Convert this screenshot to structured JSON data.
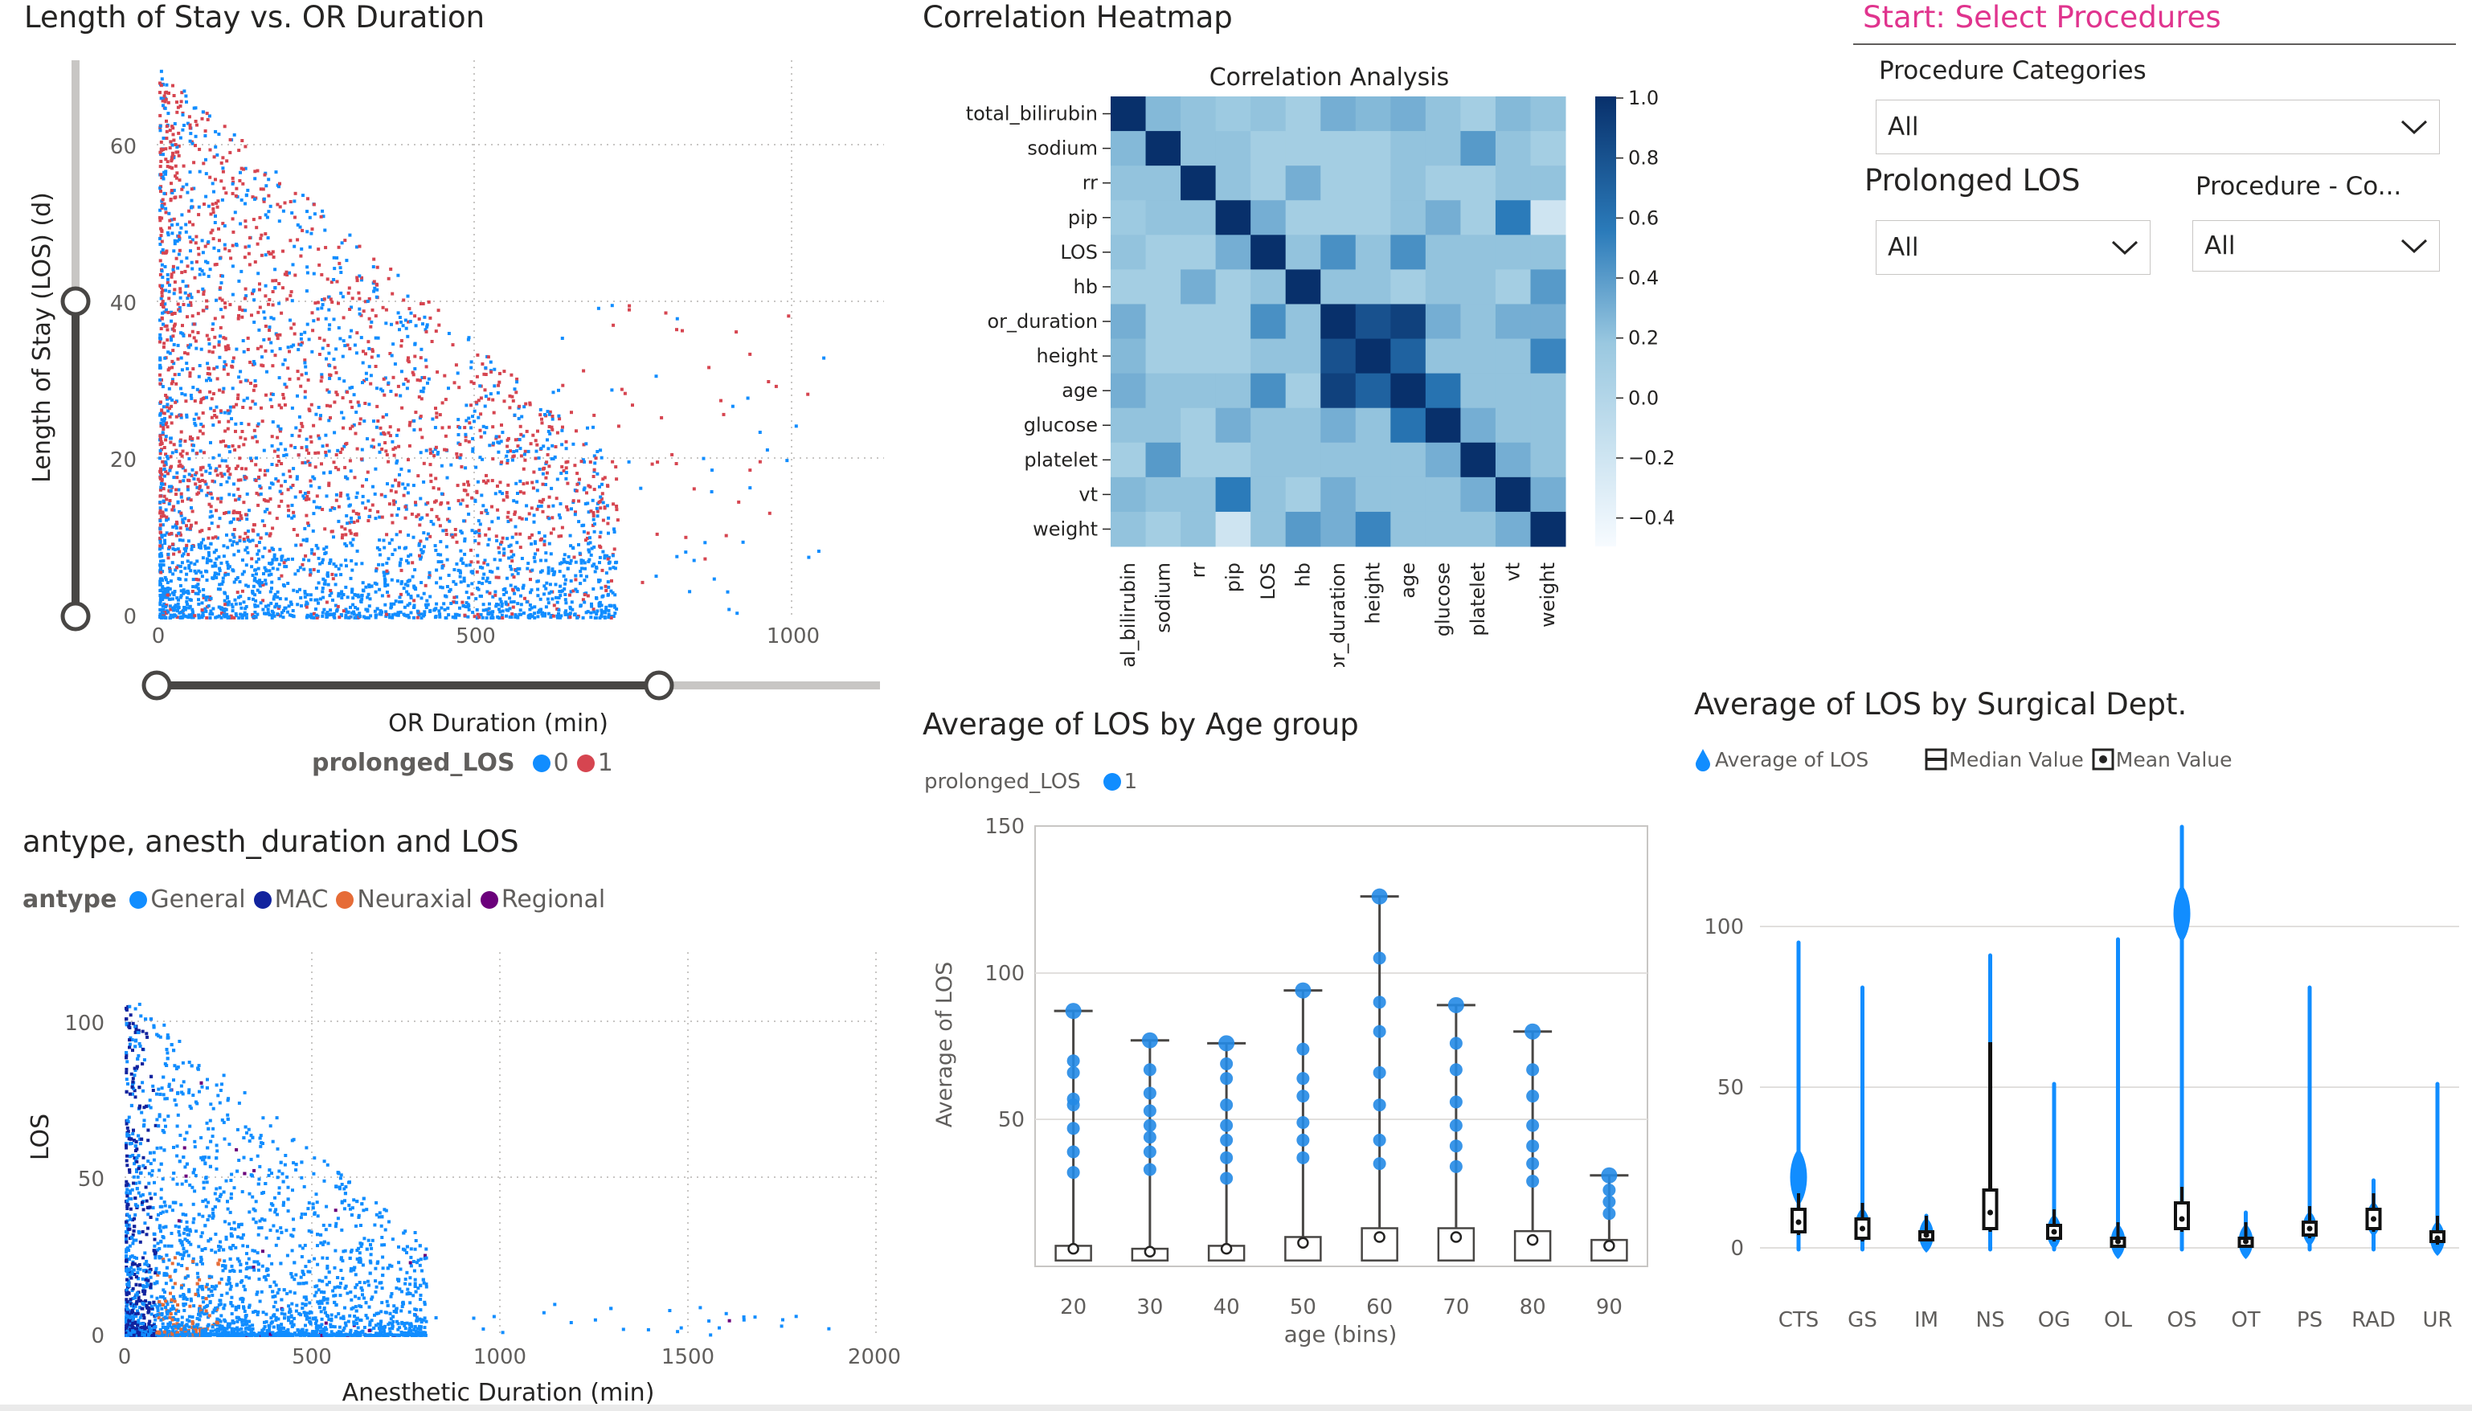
{
  "panels": {
    "scatter_los": {
      "title": "Length of Stay vs. OR Duration",
      "ylabel": "Length of Stay (LOS) (d)",
      "xlabel": "OR Duration (min)",
      "legend_title": "prolonged_LOS",
      "legend_items": [
        {
          "label": "0",
          "color": "#118dff"
        },
        {
          "label": "1",
          "color": "#d64550"
        }
      ],
      "y_ticks": [
        "0",
        "20",
        "40",
        "60"
      ],
      "x_ticks": [
        "0",
        "500",
        "1000"
      ]
    },
    "heatmap": {
      "title": "Correlation Heatmap",
      "inner_title": "Correlation Analysis",
      "variables": [
        "total_bilirubin",
        "sodium",
        "rr",
        "pip",
        "LOS",
        "hb",
        "or_duration",
        "height",
        "age",
        "glucose",
        "platelet",
        "vt",
        "weight"
      ],
      "colorbar_ticks": [
        "1.0",
        "0.8",
        "0.6",
        "0.4",
        "0.2",
        "0.0",
        "−0.2",
        "−0.4"
      ]
    },
    "slicers": {
      "header": "Start: Select Procedures",
      "procedure_categories": {
        "label": "Procedure Categories",
        "value": "All"
      },
      "prolonged_los": {
        "label": "Prolonged LOS",
        "value": "All"
      },
      "procedure_co": {
        "label": "Procedure - Co...",
        "value": "All"
      }
    },
    "anesth": {
      "title": "antype, anesth_duration and LOS",
      "legend_title": "antype",
      "legend_items": [
        {
          "label": "General",
          "color": "#118dff"
        },
        {
          "label": "MAC",
          "color": "#12239e"
        },
        {
          "label": "Neuraxial",
          "color": "#e66c37"
        },
        {
          "label": "Regional",
          "color": "#6b007b"
        }
      ],
      "ylabel": "LOS",
      "xlabel": "Anesthetic Duration (min)",
      "y_ticks": [
        "0",
        "50",
        "100"
      ],
      "x_ticks": [
        "0",
        "500",
        "1000",
        "1500",
        "2000"
      ]
    },
    "age_group": {
      "title": "Average of LOS by Age group",
      "legend_title": "prolonged_LOS",
      "legend_items": [
        {
          "label": "1",
          "color": "#118dff"
        }
      ],
      "ylabel": "Average of LOS",
      "xlabel": "age (bins)",
      "y_ticks": [
        "50",
        "100",
        "150"
      ]
    },
    "surg_dept": {
      "title": "Average of LOS by Surgical Dept.",
      "legend_items": [
        {
          "label": "Average of LOS",
          "icon": "drop-icon"
        },
        {
          "label": "Median Value",
          "icon": "median-box-icon"
        },
        {
          "label": "Mean Value",
          "icon": "mean-dot-icon"
        }
      ],
      "y_ticks": [
        "0",
        "50",
        "100"
      ]
    }
  },
  "chart_data": [
    {
      "type": "heatmap",
      "title": "Correlation Analysis",
      "variables": [
        "total_bilirubin",
        "sodium",
        "rr",
        "pip",
        "LOS",
        "hb",
        "or_duration",
        "height",
        "age",
        "glucose",
        "platelet",
        "vt",
        "weight"
      ],
      "matrix": [
        [
          1.0,
          0.25,
          0.2,
          0.15,
          0.2,
          0.1,
          0.3,
          0.25,
          0.3,
          0.2,
          0.1,
          0.25,
          0.2
        ],
        [
          0.25,
          1.0,
          0.2,
          0.2,
          0.1,
          0.1,
          0.1,
          0.1,
          0.2,
          0.2,
          0.4,
          0.2,
          0.1
        ],
        [
          0.2,
          0.2,
          1.0,
          0.2,
          0.1,
          0.3,
          0.1,
          0.1,
          0.2,
          0.1,
          0.1,
          0.2,
          0.2
        ],
        [
          0.15,
          0.2,
          0.2,
          1.0,
          0.3,
          0.1,
          0.1,
          0.1,
          0.2,
          0.3,
          0.1,
          0.55,
          -0.2
        ],
        [
          0.2,
          0.1,
          0.1,
          0.3,
          1.0,
          0.2,
          0.45,
          0.2,
          0.45,
          0.2,
          0.2,
          0.2,
          0.2
        ],
        [
          0.1,
          0.1,
          0.3,
          0.1,
          0.2,
          1.0,
          0.2,
          0.2,
          0.1,
          0.2,
          0.2,
          0.1,
          0.4
        ],
        [
          0.3,
          0.1,
          0.1,
          0.1,
          0.45,
          0.2,
          1.0,
          0.8,
          0.9,
          0.3,
          0.2,
          0.3,
          0.3
        ],
        [
          0.25,
          0.1,
          0.1,
          0.1,
          0.2,
          0.2,
          0.8,
          1.0,
          0.7,
          0.2,
          0.2,
          0.2,
          0.5
        ],
        [
          0.3,
          0.2,
          0.2,
          0.2,
          0.45,
          0.1,
          0.9,
          0.7,
          1.0,
          0.6,
          0.2,
          0.2,
          0.2
        ],
        [
          0.2,
          0.2,
          0.1,
          0.3,
          0.2,
          0.2,
          0.3,
          0.2,
          0.6,
          1.0,
          0.3,
          0.2,
          0.2
        ],
        [
          0.1,
          0.4,
          0.1,
          0.1,
          0.2,
          0.2,
          0.2,
          0.2,
          0.2,
          0.3,
          1.0,
          0.3,
          0.2
        ],
        [
          0.25,
          0.2,
          0.2,
          0.55,
          0.2,
          0.1,
          0.3,
          0.2,
          0.2,
          0.2,
          0.3,
          1.0,
          0.3
        ],
        [
          0.2,
          0.1,
          0.2,
          -0.2,
          0.2,
          0.4,
          0.3,
          0.5,
          0.2,
          0.2,
          0.2,
          0.3,
          1.0
        ]
      ],
      "colorbar_range": [
        -0.5,
        1.0
      ]
    },
    {
      "type": "box",
      "title": "Average of LOS by Age group",
      "xlabel": "age (bins)",
      "ylabel": "Average of LOS",
      "ylim": [
        0,
        150
      ],
      "categories": [
        "20",
        "30",
        "40",
        "50",
        "60",
        "70",
        "80",
        "90"
      ],
      "max": [
        87,
        77,
        76,
        94,
        126,
        89,
        80,
        31
      ],
      "q1": [
        2,
        2,
        2,
        2,
        2,
        2,
        2,
        2
      ],
      "q3": [
        7,
        6,
        7,
        10,
        13,
        13,
        12,
        9
      ],
      "mean": [
        6,
        5,
        6,
        8,
        10,
        10,
        9,
        7
      ],
      "outliers": [
        [
          87,
          70,
          66,
          57,
          55,
          47,
          39,
          32
        ],
        [
          77,
          67,
          59,
          53,
          48,
          44,
          39,
          33
        ],
        [
          76,
          69,
          64,
          55,
          48,
          43,
          37,
          30
        ],
        [
          94,
          74,
          64,
          58,
          49,
          43,
          37
        ],
        [
          126,
          105,
          90,
          80,
          66,
          55,
          43,
          35
        ],
        [
          89,
          76,
          67,
          56,
          48,
          41,
          34
        ],
        [
          80,
          67,
          58,
          48,
          41,
          35,
          29
        ],
        [
          31,
          26,
          22,
          18
        ]
      ]
    },
    {
      "type": "violin",
      "title": "Average of LOS by Surgical Dept.",
      "categories": [
        "CTS",
        "GS",
        "IM",
        "NS",
        "OG",
        "OL",
        "OS",
        "OT",
        "PS",
        "RAD",
        "UR"
      ],
      "max": [
        95,
        81,
        10,
        91,
        51,
        96,
        131,
        11,
        81,
        21,
        51
      ],
      "median": [
        8,
        6,
        4,
        11,
        5,
        2,
        9,
        2,
        6,
        9,
        3
      ],
      "mean": [
        8,
        6,
        4,
        11,
        5,
        2,
        9,
        2,
        6,
        9,
        3
      ],
      "q1": [
        5,
        3,
        3,
        6,
        3,
        1,
        6,
        1,
        4,
        6,
        2
      ],
      "q3": [
        12,
        9,
        5,
        18,
        7,
        3,
        14,
        3,
        8,
        12,
        5
      ],
      "peak": [
        22,
        7,
        4,
        11,
        5,
        2,
        104,
        2,
        6,
        9,
        3
      ],
      "ylim": [
        0,
        140
      ]
    }
  ]
}
